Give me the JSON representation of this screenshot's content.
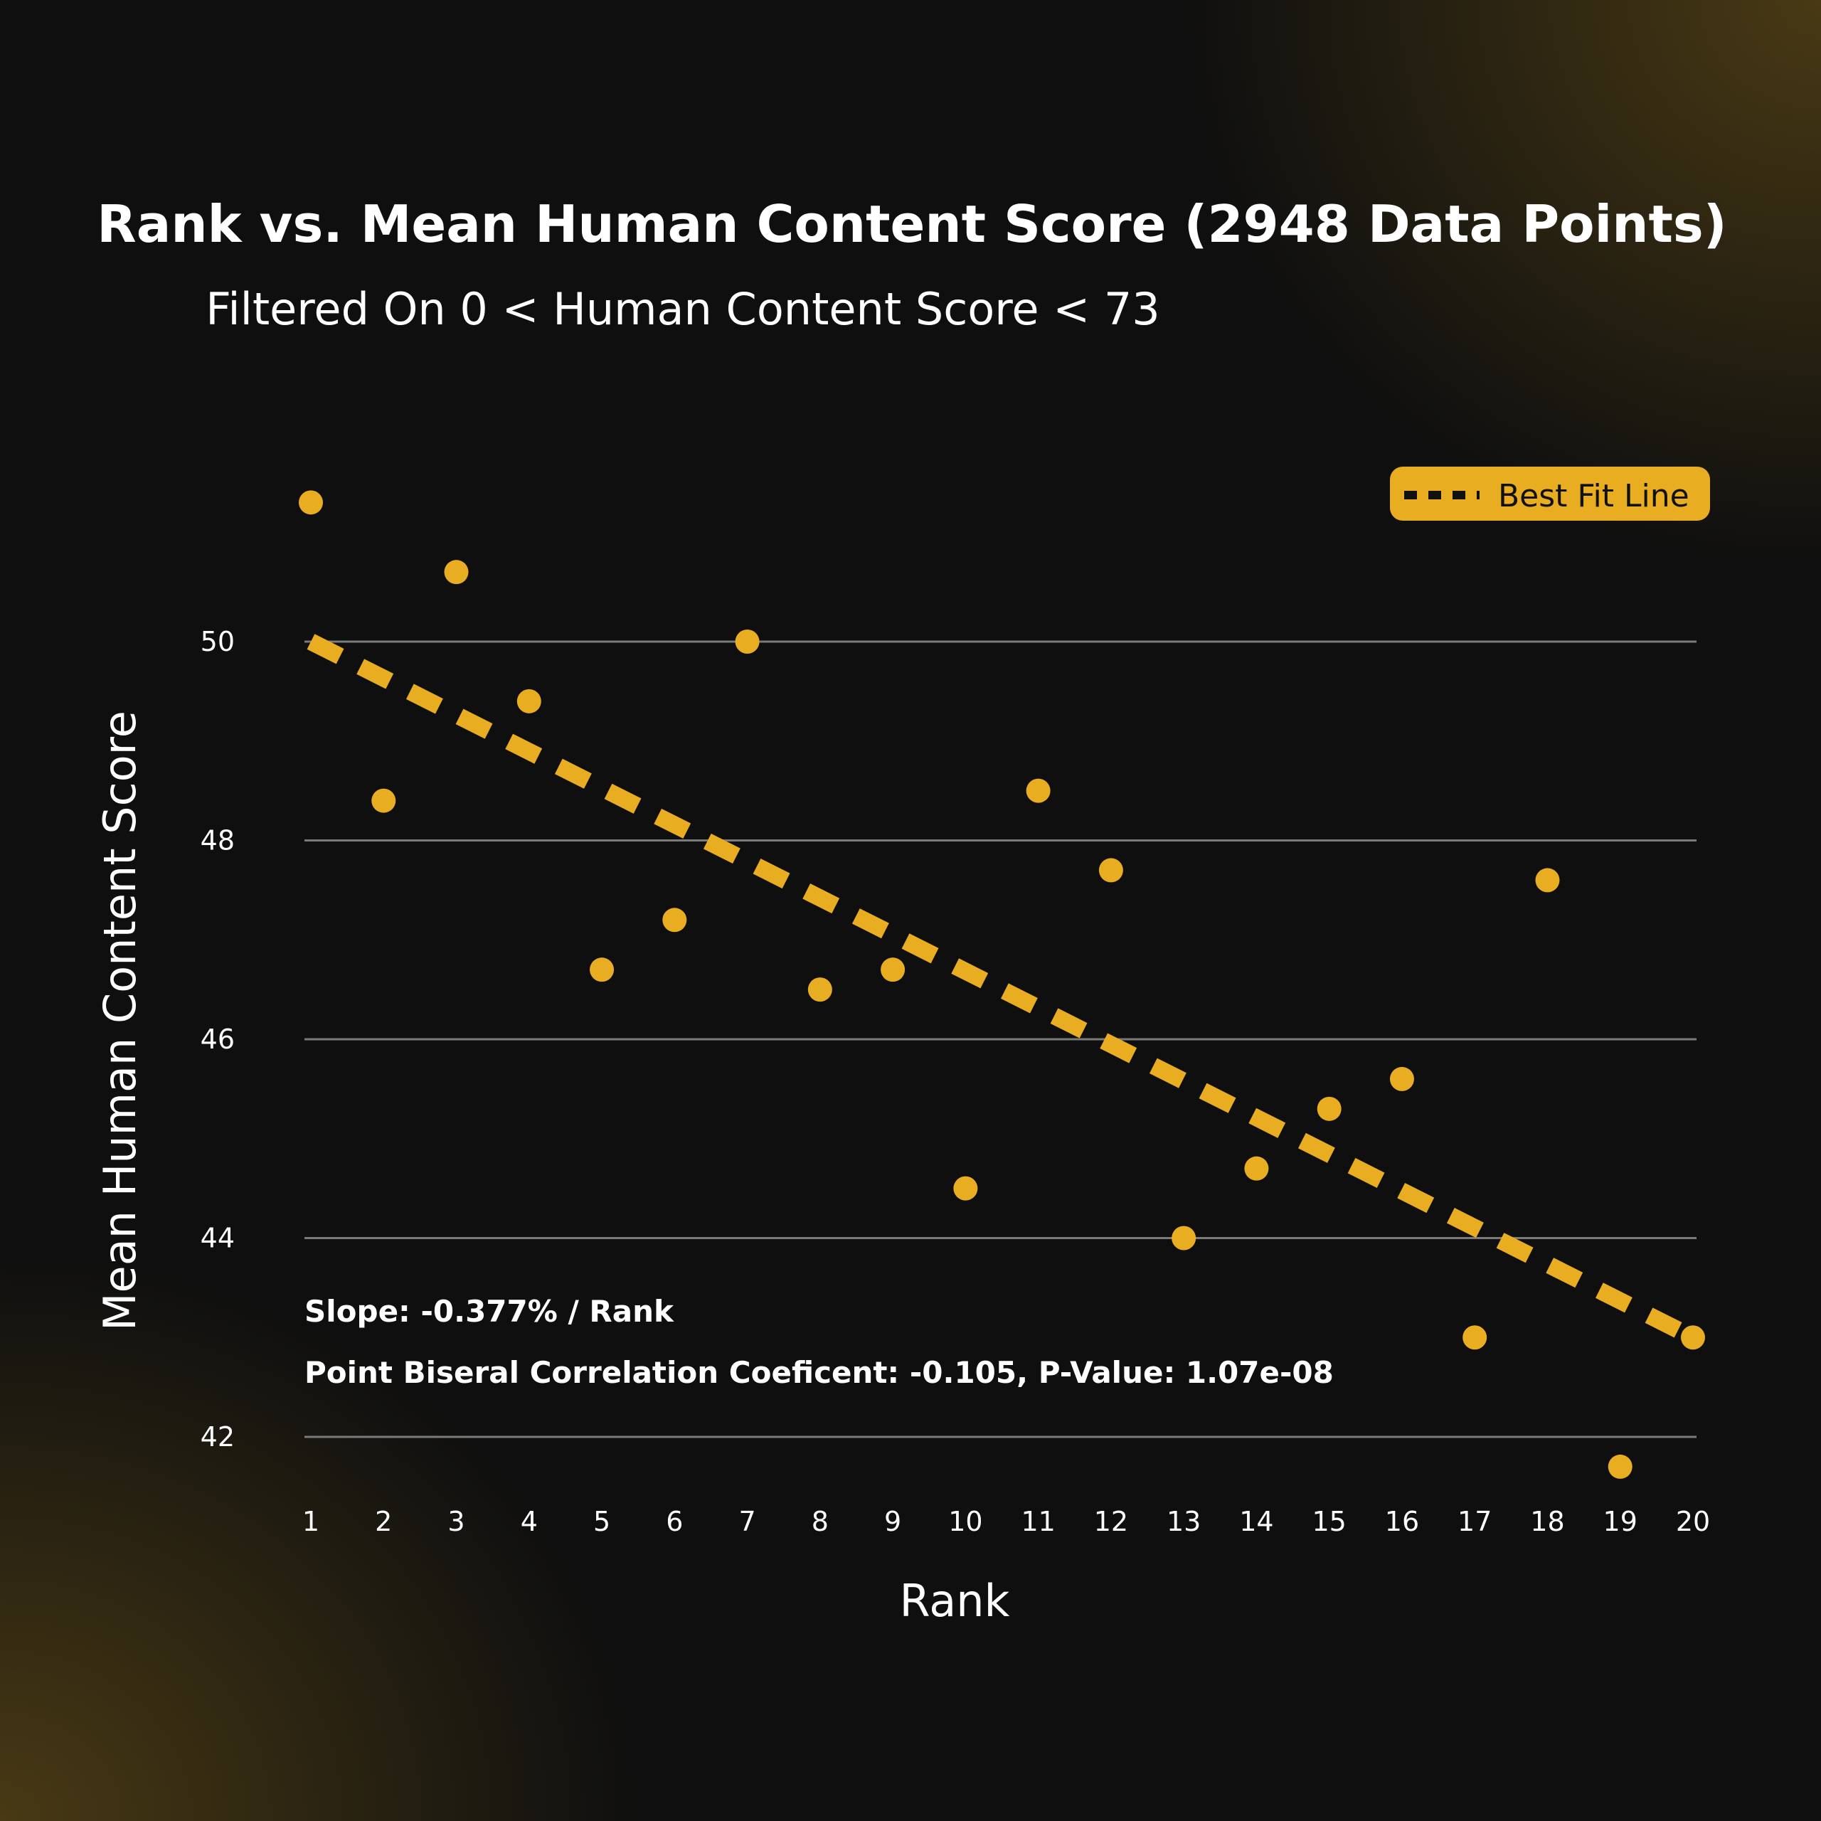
{
  "chart_data": {
    "type": "scatter",
    "title": "Rank vs. Mean Human Content Score (2948 Data Points)",
    "subtitle": "Filtered On 0 < Human Content Score < 73",
    "xlabel": "Rank",
    "ylabel": "Mean Human Content Score",
    "xlim": [
      1,
      20
    ],
    "ylim": [
      41.5,
      51.5
    ],
    "x_ticks": [
      1,
      2,
      3,
      4,
      5,
      6,
      7,
      8,
      9,
      10,
      11,
      12,
      13,
      14,
      15,
      16,
      17,
      18,
      19,
      20
    ],
    "y_ticks": [
      42,
      44,
      46,
      48,
      50
    ],
    "grid": "horizontal",
    "legend": {
      "position": "top-right",
      "label": "Best Fit Line"
    },
    "series": [
      {
        "type": "scatter",
        "x": [
          1,
          2,
          3,
          4,
          5,
          6,
          7,
          8,
          9,
          10,
          11,
          12,
          13,
          14,
          15,
          16,
          17,
          18,
          19,
          20
        ],
        "y": [
          51.4,
          48.4,
          50.7,
          49.4,
          46.7,
          47.2,
          50.0,
          46.5,
          46.7,
          44.5,
          48.5,
          47.7,
          44.0,
          44.7,
          45.3,
          45.6,
          43.0,
          47.6,
          41.7,
          43.0
        ]
      },
      {
        "name": "Best Fit Line",
        "type": "line",
        "style": "dashed",
        "x": [
          1,
          20
        ],
        "y": [
          50.0,
          43.0
        ]
      }
    ],
    "annotations": {
      "slope": "Slope: -0.377% / Rank",
      "correlation": "Point Biseral Correlation Coeficent: -0.105, P-Value: 1.07e-08"
    }
  },
  "colors": {
    "accent": "#e9ad22",
    "gridline": "#7a7a7a",
    "text": "#ffffff"
  }
}
